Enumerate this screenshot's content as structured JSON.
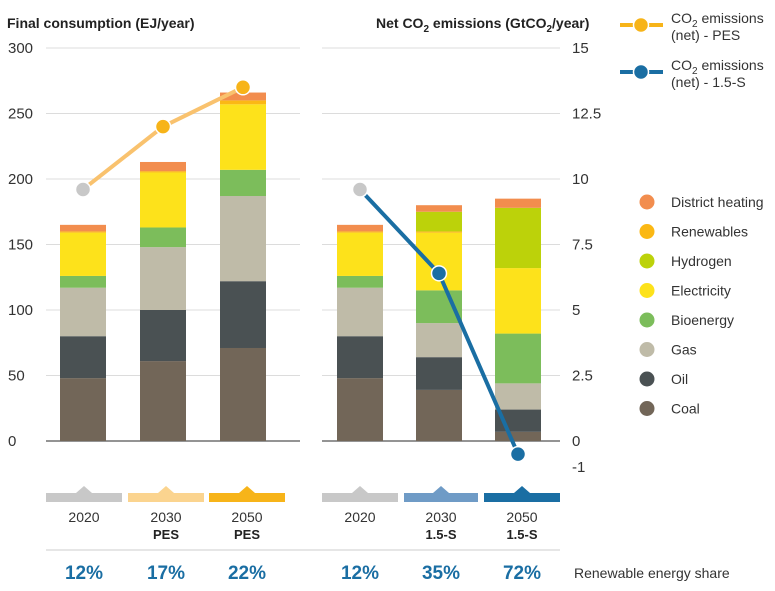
{
  "colors": {
    "District heating": "#f28d4e",
    "Renewables": "#fbb814",
    "Hydrogen": "#bcd20a",
    "Electricity": "#fde21b",
    "Bioenergy": "#7cbd5b",
    "Gas": "#bfbba8",
    "Oil": "#4a5153",
    "Coal": "#726658",
    "pes_line": "#f9c26e",
    "pes_marker": "#f7b419",
    "s15_line": "#1a6ea3",
    "gray_marker": "#c8c8c8",
    "share_text": "#1a6ea3"
  },
  "chart_data": {
    "type": "bar",
    "left_axis": {
      "title": "Final consumption (EJ/year)",
      "ylim": [
        0,
        300
      ],
      "ticks": [
        "0",
        "50",
        "100",
        "150",
        "200",
        "250",
        "300"
      ]
    },
    "right_axis": {
      "title_parts": [
        "Net CO",
        "2",
        " emissions (GtCO",
        "2",
        "/year)"
      ],
      "ylim": [
        -1,
        15
      ],
      "tick_values": [
        -1,
        0,
        2.5,
        5,
        7.5,
        10,
        12.5,
        15
      ],
      "ticks": [
        "-1",
        "0",
        "2.5",
        "5",
        "7.5",
        "10",
        "12.5",
        "15"
      ]
    },
    "stack_order": [
      "Coal",
      "Oil",
      "Gas",
      "Bioenergy",
      "Electricity",
      "Renewables",
      "Hydrogen",
      "District heating"
    ],
    "bars": [
      {
        "group": "PES",
        "year": "2020",
        "sub": "",
        "values": {
          "Coal": 48,
          "Oil": 32,
          "Gas": 37,
          "Bioenergy": 9,
          "Electricity": 33,
          "Renewables": 1,
          "Hydrogen": 0,
          "District heating": 5
        }
      },
      {
        "group": "PES",
        "year": "2030",
        "sub": "PES",
        "values": {
          "Coal": 61,
          "Oil": 39,
          "Gas": 48,
          "Bioenergy": 15,
          "Electricity": 42,
          "Renewables": 1,
          "Hydrogen": 0,
          "District heating": 7
        }
      },
      {
        "group": "PES",
        "year": "2050",
        "sub": "PES",
        "values": {
          "Coal": 71,
          "Oil": 51,
          "Gas": 65,
          "Bioenergy": 20,
          "Electricity": 50,
          "Renewables": 3,
          "Hydrogen": 0,
          "District heating": 6
        }
      },
      {
        "group": "1.5-S",
        "year": "2020",
        "sub": "",
        "values": {
          "Coal": 48,
          "Oil": 32,
          "Gas": 37,
          "Bioenergy": 9,
          "Electricity": 33,
          "Renewables": 1,
          "Hydrogen": 0,
          "District heating": 5
        }
      },
      {
        "group": "1.5-S",
        "year": "2030",
        "sub": "1.5-S",
        "values": {
          "Coal": 39,
          "Oil": 25,
          "Gas": 26,
          "Bioenergy": 25,
          "Electricity": 44,
          "Renewables": 1,
          "Hydrogen": 15,
          "District heating": 5
        }
      },
      {
        "group": "1.5-S",
        "year": "2050",
        "sub": "1.5-S",
        "values": {
          "Coal": 7,
          "Oil": 17,
          "Gas": 20,
          "Bioenergy": 38,
          "Electricity": 50,
          "Renewables": 0,
          "Hydrogen": 46,
          "District heating": 7
        }
      }
    ],
    "co2_series": [
      {
        "name": "CO₂ emissions (net) - PES",
        "points": [
          9.6,
          12.0,
          13.5
        ]
      },
      {
        "name": "CO₂ emissions (net) - 1.5-S",
        "points": [
          9.6,
          6.4,
          -0.5
        ]
      }
    ],
    "renewable_share": [
      "12%",
      "17%",
      "22%",
      "12%",
      "35%",
      "72%"
    ],
    "renewable_share_label": "Renewable energy share",
    "legend_top": [
      {
        "line1_parts": [
          "CO",
          "2",
          " emissions"
        ],
        "line2": "(net) - PES"
      },
      {
        "line1_parts": [
          "CO",
          "2",
          " emissions"
        ],
        "line2": "(net) - 1.5-S"
      }
    ],
    "legend_items": [
      "District heating",
      "Renewables",
      "Hydrogen",
      "Electricity",
      "Bioenergy",
      "Gas",
      "Oil",
      "Coal"
    ],
    "grid": true
  }
}
